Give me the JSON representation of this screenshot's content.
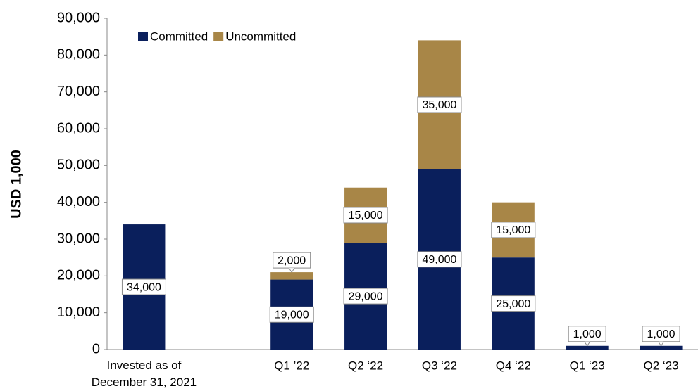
{
  "chart_data": {
    "type": "stacked_bar",
    "categories": [
      "Invested as of\nDecember 31, 2021",
      null,
      "Q1 ’22",
      "Q2 ‘22",
      "Q3 ‘22",
      "Q4 ‘22",
      "Q1 ‘23",
      "Q2 ‘23"
    ],
    "series": [
      {
        "name": "Committed",
        "color": "#0a1f5c",
        "values": [
          34000,
          null,
          19000,
          29000,
          49000,
          25000,
          1000,
          1000
        ],
        "value_labels": [
          "34,000",
          null,
          "19,000",
          "29,000",
          "49,000",
          "25,000",
          "1,000",
          "1,000"
        ]
      },
      {
        "name": "Uncommitted",
        "color": "#a88647",
        "values": [
          null,
          null,
          2000,
          15000,
          35000,
          15000,
          null,
          null
        ],
        "value_labels": [
          null,
          null,
          "2,000",
          "15,000",
          "35,000",
          "15,000",
          null,
          null
        ]
      }
    ],
    "ylabel": "USD 1,000",
    "ylim": [
      0,
      90000
    ],
    "yticks": [
      0,
      {
        "value": 10000,
        "label": "10,000"
      },
      {
        "value": 20000,
        "label": "20,000"
      },
      {
        "value": 30000,
        "label": "30,000"
      },
      {
        "value": 40000,
        "label": "40,000"
      },
      {
        "value": 50000,
        "label": "50,000"
      },
      {
        "value": 60000,
        "label": "60,000"
      },
      {
        "value": 70000,
        "label": "70,000"
      },
      {
        "value": 80000,
        "label": "80,000"
      },
      {
        "value": 90000,
        "label": "90,000"
      }
    ],
    "legend": "top-left"
  }
}
